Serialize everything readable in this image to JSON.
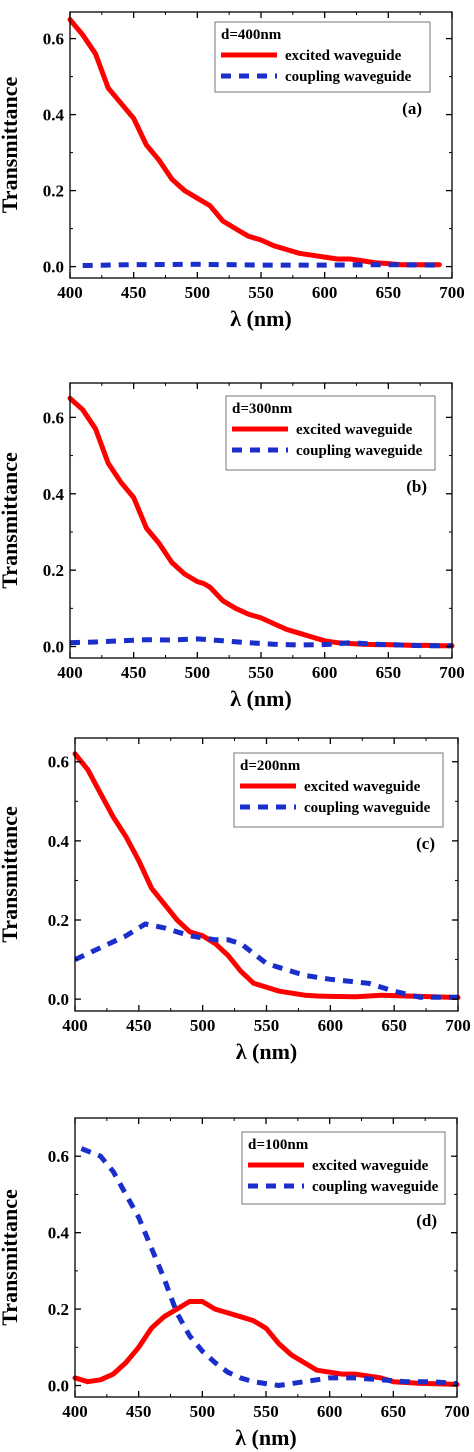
{
  "chart_data": [
    {
      "type": "line",
      "panel_label": "(a)",
      "legend_title": "d=400nm",
      "xlabel": "λ (nm)",
      "ylabel": "Transmittance",
      "xlim": [
        400,
        700
      ],
      "ylim": [
        -0.03,
        0.67
      ],
      "xticks": [
        "400",
        "450",
        "500",
        "550",
        "600",
        "650",
        "700"
      ],
      "yticks": [
        "0.0",
        "0.2",
        "0.4",
        "0.6"
      ],
      "legend_position": "top-right",
      "series": [
        {
          "name": "excited waveguide",
          "color": "#ff0000",
          "style": "solid",
          "x": [
            400,
            410,
            420,
            430,
            440,
            450,
            460,
            470,
            480,
            490,
            500,
            505,
            510,
            520,
            530,
            540,
            550,
            560,
            570,
            580,
            590,
            600,
            610,
            620,
            630,
            640,
            650,
            660,
            670,
            680,
            690
          ],
          "y": [
            0.65,
            0.61,
            0.56,
            0.47,
            0.43,
            0.39,
            0.32,
            0.28,
            0.23,
            0.2,
            0.18,
            0.17,
            0.16,
            0.12,
            0.1,
            0.08,
            0.07,
            0.055,
            0.045,
            0.035,
            0.03,
            0.025,
            0.02,
            0.02,
            0.015,
            0.01,
            0.008,
            0.005,
            0.005,
            0.005,
            0.005
          ]
        },
        {
          "name": "coupling waveguide",
          "color": "#1a2ecc",
          "style": "dashed",
          "x": [
            410,
            450,
            500,
            550,
            600,
            650,
            690
          ],
          "y": [
            0.003,
            0.005,
            0.006,
            0.004,
            0.004,
            0.005,
            0.004
          ]
        }
      ]
    },
    {
      "type": "line",
      "panel_label": "(b)",
      "legend_title": "d=300nm",
      "xlabel": "λ (nm)",
      "ylabel": "Transmittance",
      "xlim": [
        400,
        700
      ],
      "ylim": [
        -0.03,
        0.69
      ],
      "xticks": [
        "400",
        "450",
        "500",
        "550",
        "600",
        "650",
        "700"
      ],
      "yticks": [
        "0.0",
        "0.2",
        "0.4",
        "0.6"
      ],
      "legend_position": "top-right",
      "series": [
        {
          "name": "excited waveguide",
          "color": "#ff0000",
          "style": "solid",
          "x": [
            400,
            410,
            420,
            430,
            440,
            450,
            460,
            470,
            480,
            490,
            500,
            505,
            510,
            520,
            530,
            540,
            550,
            560,
            570,
            580,
            590,
            600,
            610,
            620,
            630,
            640,
            650,
            660,
            670,
            680,
            690,
            700
          ],
          "y": [
            0.65,
            0.62,
            0.57,
            0.48,
            0.43,
            0.39,
            0.31,
            0.27,
            0.22,
            0.19,
            0.17,
            0.165,
            0.155,
            0.12,
            0.1,
            0.085,
            0.075,
            0.06,
            0.045,
            0.035,
            0.025,
            0.015,
            0.01,
            0.008,
            0.006,
            0.005,
            0.005,
            0.004,
            0.003,
            0.003,
            0.002,
            0.002
          ]
        },
        {
          "name": "coupling waveguide",
          "color": "#1a2ecc",
          "style": "dashed",
          "x": [
            400,
            420,
            440,
            460,
            480,
            500,
            520,
            540,
            560,
            580,
            600,
            620,
            640,
            660,
            680,
            700
          ],
          "y": [
            0.01,
            0.012,
            0.015,
            0.018,
            0.017,
            0.02,
            0.015,
            0.01,
            0.006,
            0.004,
            0.005,
            0.01,
            0.006,
            0.004,
            0.002,
            0.002
          ]
        }
      ]
    },
    {
      "type": "line",
      "panel_label": "(c)",
      "legend_title": "d=200nm",
      "xlabel": "λ (nm)",
      "ylabel": "Transmittance",
      "xlim": [
        400,
        700
      ],
      "ylim": [
        -0.03,
        0.66
      ],
      "xticks": [
        "400",
        "450",
        "500",
        "550",
        "600",
        "650",
        "700"
      ],
      "yticks": [
        "0.0",
        "0.2",
        "0.4",
        "0.6"
      ],
      "legend_position": "top-right",
      "series": [
        {
          "name": "excited waveguide",
          "color": "#ff0000",
          "style": "solid",
          "x": [
            400,
            410,
            420,
            430,
            440,
            450,
            460,
            470,
            480,
            490,
            500,
            510,
            520,
            530,
            540,
            550,
            560,
            570,
            580,
            590,
            600,
            620,
            640,
            660,
            680,
            700
          ],
          "y": [
            0.62,
            0.58,
            0.52,
            0.46,
            0.41,
            0.35,
            0.28,
            0.24,
            0.2,
            0.17,
            0.16,
            0.14,
            0.11,
            0.07,
            0.04,
            0.03,
            0.02,
            0.015,
            0.01,
            0.008,
            0.007,
            0.006,
            0.01,
            0.008,
            0.006,
            0.004
          ]
        },
        {
          "name": "coupling waveguide",
          "color": "#1a2ecc",
          "style": "dashed",
          "x": [
            400,
            420,
            440,
            455,
            470,
            490,
            510,
            520,
            530,
            550,
            580,
            600,
            630,
            650,
            670,
            700
          ],
          "y": [
            0.1,
            0.13,
            0.16,
            0.19,
            0.18,
            0.16,
            0.15,
            0.15,
            0.14,
            0.09,
            0.06,
            0.05,
            0.04,
            0.02,
            0.005,
            0.005
          ]
        }
      ]
    },
    {
      "type": "line",
      "panel_label": "(d)",
      "legend_title": "d=100nm",
      "xlabel": "λ (nm)",
      "ylabel": "Transmittance",
      "xlim": [
        400,
        700
      ],
      "ylim": [
        -0.03,
        0.7
      ],
      "xticks": [
        "400",
        "450",
        "500",
        "550",
        "600",
        "650",
        "700"
      ],
      "yticks": [
        "0.0",
        "0.2",
        "0.4",
        "0.6"
      ],
      "legend_position": "top-right",
      "series": [
        {
          "name": "excited waveguide",
          "color": "#ff0000",
          "style": "solid",
          "x": [
            400,
            410,
            420,
            430,
            440,
            450,
            460,
            470,
            480,
            490,
            500,
            510,
            520,
            530,
            540,
            550,
            560,
            570,
            580,
            590,
            600,
            610,
            620,
            630,
            640,
            650,
            660,
            670,
            680,
            690,
            700
          ],
          "y": [
            0.02,
            0.01,
            0.015,
            0.03,
            0.06,
            0.1,
            0.15,
            0.18,
            0.2,
            0.22,
            0.22,
            0.2,
            0.19,
            0.18,
            0.17,
            0.15,
            0.11,
            0.08,
            0.06,
            0.04,
            0.035,
            0.03,
            0.03,
            0.025,
            0.02,
            0.01,
            0.008,
            0.006,
            0.005,
            0.004,
            0.003
          ]
        },
        {
          "name": "coupling waveguide",
          "color": "#1a2ecc",
          "style": "dashed",
          "x": [
            405,
            420,
            430,
            440,
            450,
            460,
            470,
            480,
            490,
            500,
            510,
            520,
            530,
            540,
            550,
            560,
            580,
            600,
            620,
            640,
            660,
            680,
            700
          ],
          "y": [
            0.62,
            0.6,
            0.56,
            0.5,
            0.44,
            0.36,
            0.28,
            0.19,
            0.13,
            0.09,
            0.06,
            0.035,
            0.02,
            0.01,
            0.005,
            0.0,
            0.01,
            0.02,
            0.02,
            0.015,
            0.01,
            0.01,
            0.005
          ]
        }
      ]
    }
  ]
}
